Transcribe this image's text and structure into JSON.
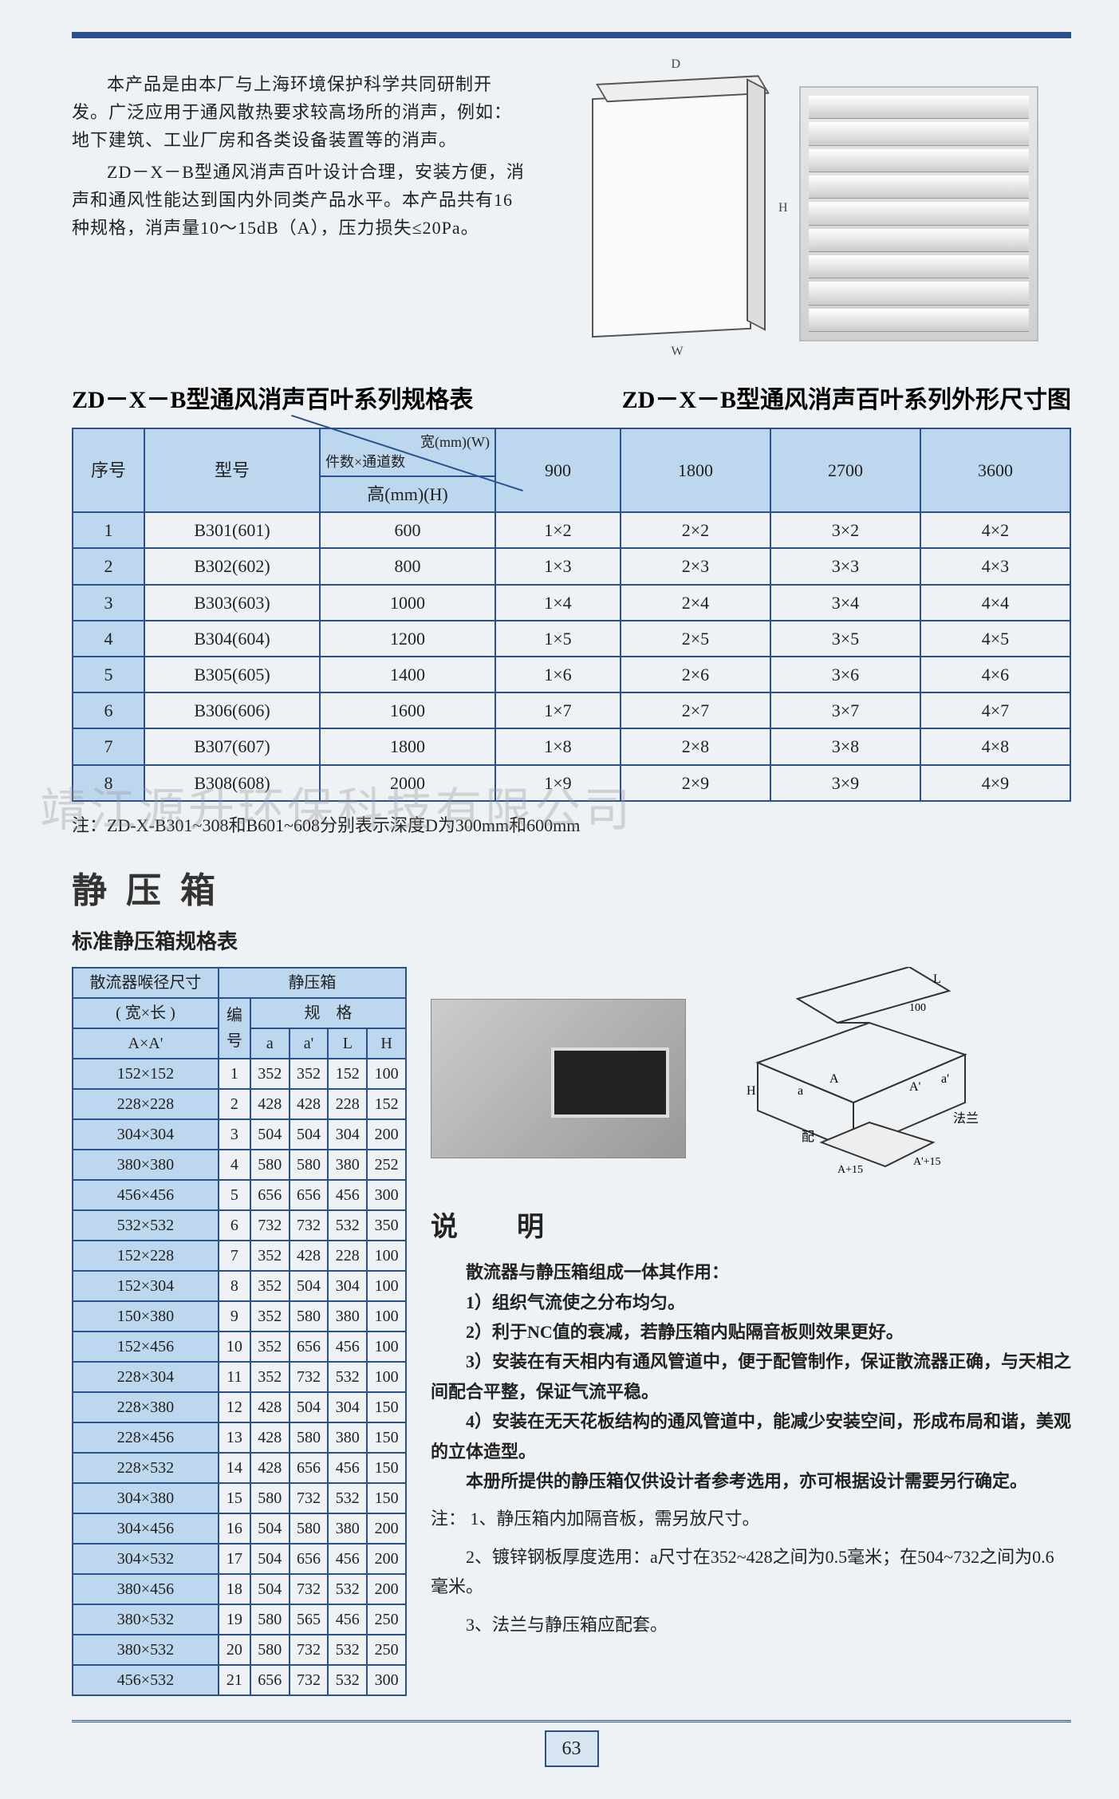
{
  "topbar_color": "#2a5090",
  "intro": {
    "p1": "本产品是由本厂与上海环境保护科学共同研制开发。广泛应用于通风散热要求较高场所的消声，例如：地下建筑、工业厂房和各类设备装置等的消声。",
    "p2": "ZD－X－B型通风消声百叶设计合理，安装方便，消声和通风性能达到国内外同类产品水平。本产品共有16种规格，消声量10～15dB（A），压力损失≤20Pa。"
  },
  "diagram_labels": {
    "D": "D",
    "H": "H",
    "W": "W"
  },
  "titles": {
    "spec_table": "ZD－X－B型通风消声百叶系列规格表",
    "dim_figure": "ZD－X－B型通风消声百叶系列外形尺寸图"
  },
  "spec_table": {
    "headers": {
      "seq": "序号",
      "model": "型号",
      "diag_top": "宽(mm)(W)",
      "diag_left": "件数×通道数",
      "height_row": "高(mm)(H)",
      "widths": [
        "900",
        "1800",
        "2700",
        "3600"
      ]
    },
    "rows": [
      {
        "seq": "1",
        "model": "B301(601)",
        "h": "600",
        "cells": [
          "1×2",
          "2×2",
          "3×2",
          "4×2"
        ]
      },
      {
        "seq": "2",
        "model": "B302(602)",
        "h": "800",
        "cells": [
          "1×3",
          "2×3",
          "3×3",
          "4×3"
        ]
      },
      {
        "seq": "3",
        "model": "B303(603)",
        "h": "1000",
        "cells": [
          "1×4",
          "2×4",
          "3×4",
          "4×4"
        ]
      },
      {
        "seq": "4",
        "model": "B304(604)",
        "h": "1200",
        "cells": [
          "1×5",
          "2×5",
          "3×5",
          "4×5"
        ]
      },
      {
        "seq": "5",
        "model": "B305(605)",
        "h": "1400",
        "cells": [
          "1×6",
          "2×6",
          "3×6",
          "4×6"
        ]
      },
      {
        "seq": "6",
        "model": "B306(606)",
        "h": "1600",
        "cells": [
          "1×7",
          "2×7",
          "3×7",
          "4×7"
        ]
      },
      {
        "seq": "7",
        "model": "B307(607)",
        "h": "1800",
        "cells": [
          "1×8",
          "2×8",
          "3×8",
          "4×8"
        ]
      },
      {
        "seq": "8",
        "model": "B308(608)",
        "h": "2000",
        "cells": [
          "1×9",
          "2×9",
          "3×9",
          "4×9"
        ]
      }
    ],
    "footnote": "注：ZD-X-B301~308和B601~608分别表示深度D为300mm和600mm"
  },
  "jyx": {
    "title": "静压箱",
    "subtitle": "标准静压箱规格表",
    "table": {
      "h_diffuser": "散流器喉径尺寸",
      "h_box": "静压箱",
      "h_wl": "( 宽×长 )",
      "h_AA": "A×A'",
      "h_no": "编号",
      "h_spec": "规　格",
      "cols": [
        "a",
        "a'",
        "L",
        "H"
      ],
      "rows": [
        [
          "152×152",
          "1",
          "352",
          "352",
          "152",
          "100"
        ],
        [
          "228×228",
          "2",
          "428",
          "428",
          "228",
          "152"
        ],
        [
          "304×304",
          "3",
          "504",
          "504",
          "304",
          "200"
        ],
        [
          "380×380",
          "4",
          "580",
          "580",
          "380",
          "252"
        ],
        [
          "456×456",
          "5",
          "656",
          "656",
          "456",
          "300"
        ],
        [
          "532×532",
          "6",
          "732",
          "732",
          "532",
          "350"
        ],
        [
          "152×228",
          "7",
          "352",
          "428",
          "228",
          "100"
        ],
        [
          "152×304",
          "8",
          "352",
          "504",
          "304",
          "100"
        ],
        [
          "150×380",
          "9",
          "352",
          "580",
          "380",
          "100"
        ],
        [
          "152×456",
          "10",
          "352",
          "656",
          "456",
          "100"
        ],
        [
          "228×304",
          "11",
          "352",
          "732",
          "532",
          "100"
        ],
        [
          "228×380",
          "12",
          "428",
          "504",
          "304",
          "150"
        ],
        [
          "228×456",
          "13",
          "428",
          "580",
          "380",
          "150"
        ],
        [
          "228×532",
          "14",
          "428",
          "656",
          "456",
          "150"
        ],
        [
          "304×380",
          "15",
          "580",
          "732",
          "532",
          "150"
        ],
        [
          "304×456",
          "16",
          "504",
          "580",
          "380",
          "200"
        ],
        [
          "304×532",
          "17",
          "504",
          "656",
          "456",
          "200"
        ],
        [
          "380×456",
          "18",
          "504",
          "732",
          "532",
          "200"
        ],
        [
          "380×532",
          "19",
          "580",
          "565",
          "456",
          "250"
        ],
        [
          "380×532",
          "20",
          "580",
          "732",
          "532",
          "250"
        ],
        [
          "456×532",
          "21",
          "656",
          "732",
          "532",
          "300"
        ]
      ]
    }
  },
  "iso_labels": {
    "L": "L",
    "H": "H",
    "a": "a",
    "A": "A",
    "ap": "a'",
    "Ap": "A'",
    "flange": "法兰",
    "pei": "配",
    "Ap15_1": "A+15",
    "Ap15_2": "A'+15",
    "hundred": "100"
  },
  "shuoming": {
    "title": "说　明",
    "lead": "散流器与静压箱组成一体其作用：",
    "items": [
      "1）组织气流使之分布均匀。",
      "2）利于NC值的衰减，若静压箱内贴隔音板则效果更好。",
      "3）安装在有天相内有通风管道中，便于配管制作，保证散流器正确，与天相之间配合平整，保证气流平稳。",
      "4）安装在无天花板结构的通风管道中，能减少安装空间，形成布局和谐，美观的立体造型。"
    ],
    "tail": "本册所提供的静压箱仅供设计者参考选用，亦可根据设计需要另行确定。",
    "notes_label": "注：",
    "notes": [
      "1、静压箱内加隔音板，需另放尺寸。",
      "2、镀锌钢板厚度选用：a尺寸在352~428之间为0.5毫米；在504~732之间为0.6毫米。",
      "3、法兰与静压箱应配套。"
    ]
  },
  "watermark": "靖江源升环保科技有限公司",
  "page_number": "63"
}
